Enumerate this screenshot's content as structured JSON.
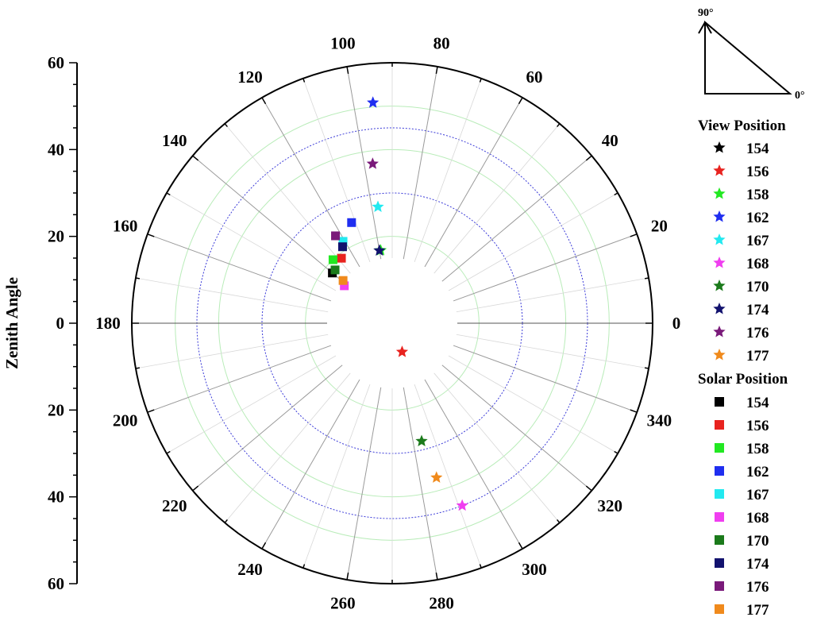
{
  "chart_data": {
    "type": "scatter",
    "subtype": "polar",
    "radial_axis": {
      "title": "Zenith Angle",
      "range": [
        0,
        60
      ],
      "tick_labels_upper": [
        "60",
        "40",
        "20",
        "0"
      ],
      "tick_labels_lower": [
        "20",
        "40",
        "60"
      ],
      "tick_values_upper": [
        60,
        40,
        20,
        0
      ],
      "tick_values_lower": [
        20,
        40,
        60
      ],
      "inner_blank_radius": 15,
      "major_rings": [
        30,
        45
      ],
      "minor_rings": [
        20,
        40,
        50
      ]
    },
    "angular_axis": {
      "labels": [
        "0",
        "20",
        "40",
        "60",
        "80",
        "100",
        "120",
        "140",
        "160",
        "180",
        "200",
        "220",
        "240",
        "260",
        "280",
        "300",
        "320",
        "340"
      ],
      "values": [
        0,
        20,
        40,
        60,
        80,
        100,
        120,
        140,
        160,
        180,
        200,
        220,
        240,
        260,
        280,
        300,
        320,
        340
      ],
      "direction": "counterclockwise",
      "zero_at": "right"
    },
    "grid": true,
    "inset": {
      "label_top": "90°",
      "label_right": "0°"
    },
    "legend": {
      "placement": "right",
      "groups": [
        {
          "title": "View Position",
          "marker": "star",
          "items": [
            {
              "name": "154",
              "color": "#000000"
            },
            {
              "name": "156",
              "color": "#e8231f"
            },
            {
              "name": "158",
              "color": "#22e822"
            },
            {
              "name": "162",
              "color": "#1f2ef0"
            },
            {
              "name": "167",
              "color": "#22e9f0"
            },
            {
              "name": "168",
              "color": "#f03ef0"
            },
            {
              "name": "170",
              "color": "#1b7a1b"
            },
            {
              "name": "174",
              "color": "#12126e"
            },
            {
              "name": "176",
              "color": "#7a1a7a"
            },
            {
              "name": "177",
              "color": "#f08a1c"
            }
          ]
        },
        {
          "title": "Solar Position",
          "marker": "square",
          "items": [
            {
              "name": "154",
              "color": "#000000"
            },
            {
              "name": "156",
              "color": "#e8231f"
            },
            {
              "name": "158",
              "color": "#22e822"
            },
            {
              "name": "162",
              "color": "#1f2ef0"
            },
            {
              "name": "167",
              "color": "#22e9f0"
            },
            {
              "name": "168",
              "color": "#f03ef0"
            },
            {
              "name": "170",
              "color": "#1b7a1b"
            },
            {
              "name": "174",
              "color": "#12126e"
            },
            {
              "name": "176",
              "color": "#7a1a7a"
            },
            {
              "name": "177",
              "color": "#f08a1c"
            }
          ]
        }
      ]
    },
    "series": [
      {
        "group": "View Position",
        "marker": "star",
        "points": [
          {
            "name": "156",
            "theta": 289,
            "r": 7
          },
          {
            "name": "158",
            "theta": 99,
            "r": 17
          },
          {
            "name": "162",
            "theta": 95,
            "r": 51
          },
          {
            "name": "167",
            "theta": 97,
            "r": 27
          },
          {
            "name": "168",
            "theta": 291,
            "r": 45
          },
          {
            "name": "170",
            "theta": 284,
            "r": 28
          },
          {
            "name": "174",
            "theta": 100,
            "r": 17
          },
          {
            "name": "176",
            "theta": 97,
            "r": 37
          },
          {
            "name": "177",
            "theta": 286,
            "r": 37
          }
        ]
      },
      {
        "group": "Solar Position",
        "marker": "square",
        "points": [
          {
            "name": "154",
            "theta": 140,
            "r": 18
          },
          {
            "name": "156",
            "theta": 128,
            "r": 19
          },
          {
            "name": "158",
            "theta": 133,
            "r": 20
          },
          {
            "name": "162",
            "theta": 112,
            "r": 25
          },
          {
            "name": "167",
            "theta": 121,
            "r": 22
          },
          {
            "name": "168",
            "theta": 142,
            "r": 14
          },
          {
            "name": "170",
            "theta": 137,
            "r": 18
          },
          {
            "name": "174",
            "theta": 123,
            "r": 21
          },
          {
            "name": "176",
            "theta": 123,
            "r": 24
          },
          {
            "name": "177",
            "theta": 139,
            "r": 15
          }
        ]
      }
    ]
  }
}
